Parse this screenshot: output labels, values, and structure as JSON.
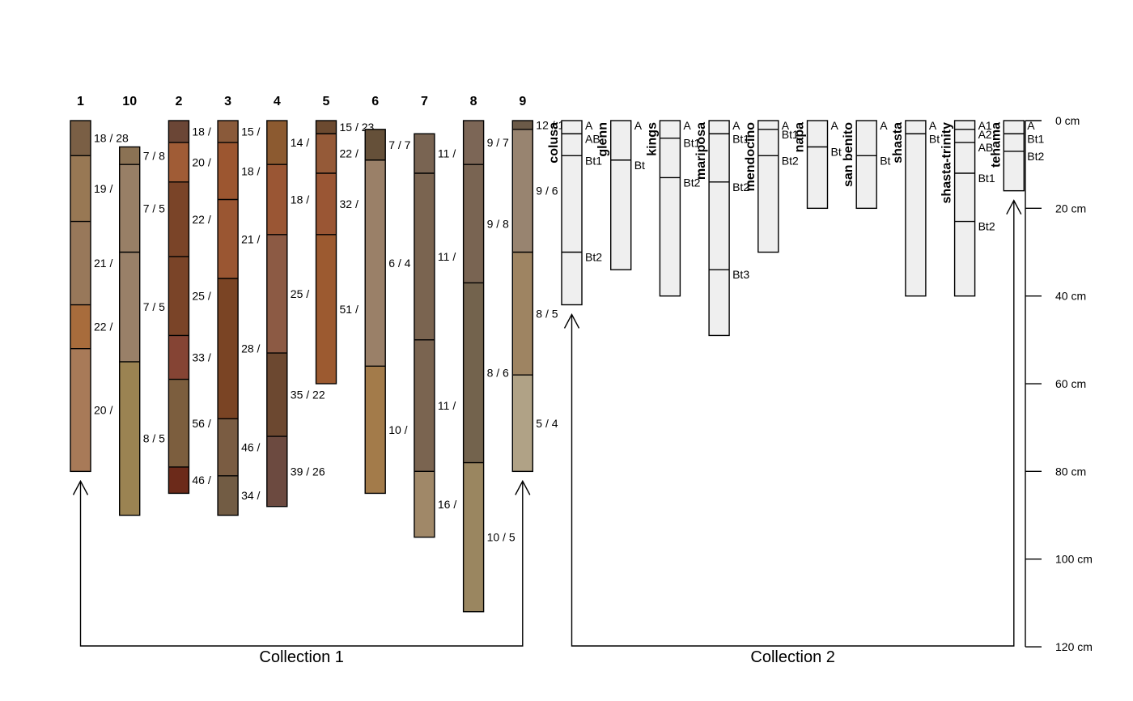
{
  "collections": [
    {
      "label": "Collection 1",
      "profiles": [
        {
          "id": "1",
          "horizons": [
            {
              "top": 0,
              "bottom": 8,
              "label": "18 / 28",
              "color": "#7a5f45"
            },
            {
              "top": 8,
              "bottom": 23,
              "label": "19 /",
              "color": "#987854"
            },
            {
              "top": 23,
              "bottom": 42,
              "label": "21 /",
              "color": "#98785a"
            },
            {
              "top": 42,
              "bottom": 52,
              "label": "22 /",
              "color": "#a86c3c"
            },
            {
              "top": 52,
              "bottom": 80,
              "label": "20 /",
              "color": "#a87a58"
            }
          ]
        },
        {
          "id": "10",
          "horizons": [
            {
              "top": 6,
              "bottom": 10,
              "label": "7 / 8",
              "color": "#8b7254"
            },
            {
              "top": 10,
              "bottom": 30,
              "label": "7 / 5",
              "color": "#987f66"
            },
            {
              "top": 30,
              "bottom": 55,
              "label": "7 / 5",
              "color": "#998068"
            },
            {
              "top": 55,
              "bottom": 90,
              "label": "8 / 5",
              "color": "#9b8352"
            }
          ]
        },
        {
          "id": "2",
          "horizons": [
            {
              "top": 0,
              "bottom": 5,
              "label": "18 /",
              "color": "#6b4636"
            },
            {
              "top": 5,
              "bottom": 14,
              "label": "20 /",
              "color": "#a05c36"
            },
            {
              "top": 14,
              "bottom": 31,
              "label": "22 /",
              "color": "#7a4428"
            },
            {
              "top": 31,
              "bottom": 49,
              "label": "25 /",
              "color": "#7a4428"
            },
            {
              "top": 49,
              "bottom": 59,
              "label": "33 /",
              "color": "#854434"
            },
            {
              "top": 59,
              "bottom": 79,
              "label": "56 /",
              "color": "#7c5e3e"
            },
            {
              "top": 79,
              "bottom": 85,
              "label": "46 /",
              "color": "#6c2a1a"
            }
          ]
        },
        {
          "id": "3",
          "horizons": [
            {
              "top": 0,
              "bottom": 5,
              "label": "15 /",
              "color": "#8a5a3a"
            },
            {
              "top": 5,
              "bottom": 18,
              "label": "18 /",
              "color": "#9c5630"
            },
            {
              "top": 18,
              "bottom": 36,
              "label": "21 /",
              "color": "#9a5632"
            },
            {
              "top": 36,
              "bottom": 68,
              "label": "28 /",
              "color": "#7a4424"
            },
            {
              "top": 68,
              "bottom": 81,
              "label": "46 /",
              "color": "#7a5c42"
            },
            {
              "top": 81,
              "bottom": 90,
              "label": "34 /",
              "color": "#725c44"
            }
          ]
        },
        {
          "id": "4",
          "horizons": [
            {
              "top": 0,
              "bottom": 10,
              "label": "14 /",
              "color": "#8c5a30"
            },
            {
              "top": 10,
              "bottom": 26,
              "label": "18 /",
              "color": "#9a5634"
            },
            {
              "top": 26,
              "bottom": 53,
              "label": "25 /",
              "color": "#8c5a44"
            },
            {
              "top": 53,
              "bottom": 72,
              "label": "35 / 22",
              "color": "#6c4830"
            },
            {
              "top": 72,
              "bottom": 88,
              "label": "39 / 26",
              "color": "#6c4a40"
            }
          ]
        },
        {
          "id": "5",
          "horizons": [
            {
              "top": 0,
              "bottom": 3,
              "label": "15 / 23",
              "color": "#6c4a30"
            },
            {
              "top": 3,
              "bottom": 12,
              "label": "22 /",
              "color": "#955a38"
            },
            {
              "top": 12,
              "bottom": 26,
              "label": "32 /",
              "color": "#9a5634"
            },
            {
              "top": 26,
              "bottom": 60,
              "label": "51 /",
              "color": "#9c5a30"
            }
          ]
        },
        {
          "id": "6",
          "horizons": [
            {
              "top": 2,
              "bottom": 9,
              "label": "7 / 7",
              "color": "#655039"
            },
            {
              "top": 9,
              "bottom": 56,
              "label": "6 / 4",
              "color": "#9a8068"
            },
            {
              "top": 56,
              "bottom": 85,
              "label": "10 /",
              "color": "#a37b4a"
            }
          ]
        },
        {
          "id": "7",
          "horizons": [
            {
              "top": 3,
              "bottom": 12,
              "label": "11 /",
              "color": "#796452"
            },
            {
              "top": 12,
              "bottom": 50,
              "label": "11 /",
              "color": "#7a6450"
            },
            {
              "top": 50,
              "bottom": 80,
              "label": "11 /",
              "color": "#7a6450"
            },
            {
              "top": 80,
              "bottom": 95,
              "label": "16 /",
              "color": "#a08868"
            }
          ]
        },
        {
          "id": "8",
          "horizons": [
            {
              "top": 0,
              "bottom": 10,
              "label": "9 / 7",
              "color": "#7c6656"
            },
            {
              "top": 10,
              "bottom": 37,
              "label": "9 / 8",
              "color": "#796452"
            },
            {
              "top": 37,
              "bottom": 78,
              "label": "8 / 6",
              "color": "#73634d"
            },
            {
              "top": 78,
              "bottom": 112,
              "label": "10 / 5",
              "color": "#9a8660"
            }
          ]
        },
        {
          "id": "9",
          "horizons": [
            {
              "top": 0,
              "bottom": 2,
              "label": "12 / 15",
              "color": "#6b5a48"
            },
            {
              "top": 2,
              "bottom": 30,
              "label": "9 / 6",
              "color": "#988470"
            },
            {
              "top": 30,
              "bottom": 58,
              "label": "8 / 5",
              "color": "#9e8462"
            },
            {
              "top": 58,
              "bottom": 80,
              "label": "5 / 4",
              "color": "#b0a286"
            }
          ]
        }
      ]
    },
    {
      "label": "Collection 2",
      "profiles": [
        {
          "id": "colusa",
          "horizons": [
            {
              "top": 0,
              "bottom": 3,
              "label": "A"
            },
            {
              "top": 3,
              "bottom": 8,
              "label": "AB"
            },
            {
              "top": 8,
              "bottom": 30,
              "label": "Bt1"
            },
            {
              "top": 30,
              "bottom": 42,
              "label": "Bt2"
            }
          ]
        },
        {
          "id": "glenn",
          "horizons": [
            {
              "top": 0,
              "bottom": 9,
              "label": "A"
            },
            {
              "top": 9,
              "bottom": 34,
              "label": "Bt"
            }
          ]
        },
        {
          "id": "kings",
          "horizons": [
            {
              "top": 0,
              "bottom": 4,
              "label": "A"
            },
            {
              "top": 4,
              "bottom": 13,
              "label": "Bt1"
            },
            {
              "top": 13,
              "bottom": 40,
              "label": "Bt2"
            }
          ]
        },
        {
          "id": "mariposa",
          "horizons": [
            {
              "top": 0,
              "bottom": 3,
              "label": "A"
            },
            {
              "top": 3,
              "bottom": 14,
              "label": "Bt1"
            },
            {
              "top": 14,
              "bottom": 34,
              "label": "Bt2"
            },
            {
              "top": 34,
              "bottom": 49,
              "label": "Bt3"
            }
          ]
        },
        {
          "id": "mendocino",
          "horizons": [
            {
              "top": 0,
              "bottom": 2,
              "label": "A"
            },
            {
              "top": 2,
              "bottom": 8,
              "label": "Bt1"
            },
            {
              "top": 8,
              "bottom": 30,
              "label": "Bt2"
            }
          ]
        },
        {
          "id": "napa",
          "horizons": [
            {
              "top": 0,
              "bottom": 6,
              "label": "A"
            },
            {
              "top": 6,
              "bottom": 20,
              "label": "Bt"
            }
          ]
        },
        {
          "id": "san benito",
          "horizons": [
            {
              "top": 0,
              "bottom": 8,
              "label": "A"
            },
            {
              "top": 8,
              "bottom": 20,
              "label": "Bt"
            }
          ]
        },
        {
          "id": "shasta",
          "horizons": [
            {
              "top": 0,
              "bottom": 3,
              "label": "A"
            },
            {
              "top": 3,
              "bottom": 40,
              "label": "Bt"
            }
          ]
        },
        {
          "id": "shasta-trinity",
          "horizons": [
            {
              "top": 0,
              "bottom": 2,
              "label": "A1"
            },
            {
              "top": 2,
              "bottom": 5,
              "label": "A2"
            },
            {
              "top": 5,
              "bottom": 12,
              "label": "AB"
            },
            {
              "top": 12,
              "bottom": 23,
              "label": "Bt1"
            },
            {
              "top": 23,
              "bottom": 40,
              "label": "Bt2"
            }
          ]
        },
        {
          "id": "tehama",
          "horizons": [
            {
              "top": 0,
              "bottom": 3,
              "label": "A"
            },
            {
              "top": 3,
              "bottom": 7,
              "label": "Bt1"
            },
            {
              "top": 7,
              "bottom": 16,
              "label": "Bt2"
            }
          ]
        }
      ]
    }
  ],
  "depth_axis": {
    "ticks": [
      {
        "value": 0,
        "label": "0 cm"
      },
      {
        "value": 20,
        "label": "20 cm"
      },
      {
        "value": 40,
        "label": "40 cm"
      },
      {
        "value": 60,
        "label": "60 cm"
      },
      {
        "value": 80,
        "label": "80 cm"
      },
      {
        "value": 100,
        "label": "100 cm"
      },
      {
        "value": 120,
        "label": "120 cm"
      }
    ]
  },
  "colors": {
    "collection2_fill": "#efefef",
    "line": "#000000"
  }
}
